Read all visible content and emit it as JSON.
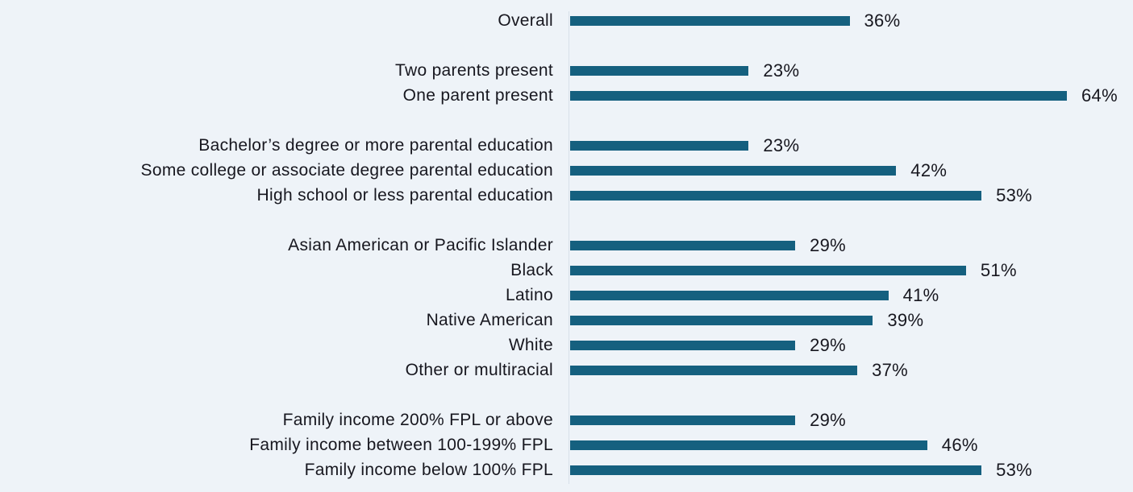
{
  "chart_data": {
    "type": "bar",
    "orientation": "horizontal",
    "title": "",
    "xlabel": "",
    "ylabel": "",
    "unit": "%",
    "xlim": [
      0,
      64
    ],
    "grid": false,
    "legend": null,
    "colors": {
      "bar": "#15607f",
      "background": "#eef3f8",
      "axis": "#d7e0e9",
      "text": "#17171f"
    },
    "groups": [
      {
        "name": "overall",
        "rows": [
          {
            "label": "Overall",
            "value": 36,
            "value_label": "36%"
          }
        ]
      },
      {
        "name": "family-structure",
        "rows": [
          {
            "label": "Two parents present",
            "value": 23,
            "value_label": "23%"
          },
          {
            "label": "One parent present",
            "value": 64,
            "value_label": "64%"
          }
        ]
      },
      {
        "name": "parental-education",
        "rows": [
          {
            "label": "Bachelor’s degree or more parental education",
            "value": 23,
            "value_label": "23%"
          },
          {
            "label": "Some college or associate degree parental education",
            "value": 42,
            "value_label": "42%"
          },
          {
            "label": "High school or less parental education",
            "value": 53,
            "value_label": "53%"
          }
        ]
      },
      {
        "name": "race-ethnicity",
        "rows": [
          {
            "label": "Asian American or Pacific Islander",
            "value": 29,
            "value_label": "29%"
          },
          {
            "label": "Black",
            "value": 51,
            "value_label": "51%"
          },
          {
            "label": "Latino",
            "value": 41,
            "value_label": "41%"
          },
          {
            "label": "Native American",
            "value": 39,
            "value_label": "39%"
          },
          {
            "label": "White",
            "value": 29,
            "value_label": "29%"
          },
          {
            "label": "Other or multiracial",
            "value": 37,
            "value_label": "37%"
          }
        ]
      },
      {
        "name": "family-income",
        "rows": [
          {
            "label": "Family income 200% FPL or above",
            "value": 29,
            "value_label": "29%"
          },
          {
            "label": "Family income between 100-199% FPL",
            "value": 46,
            "value_label": "46%"
          },
          {
            "label": "Family income below 100% FPL",
            "value": 53,
            "value_label": "53%"
          }
        ]
      }
    ]
  }
}
